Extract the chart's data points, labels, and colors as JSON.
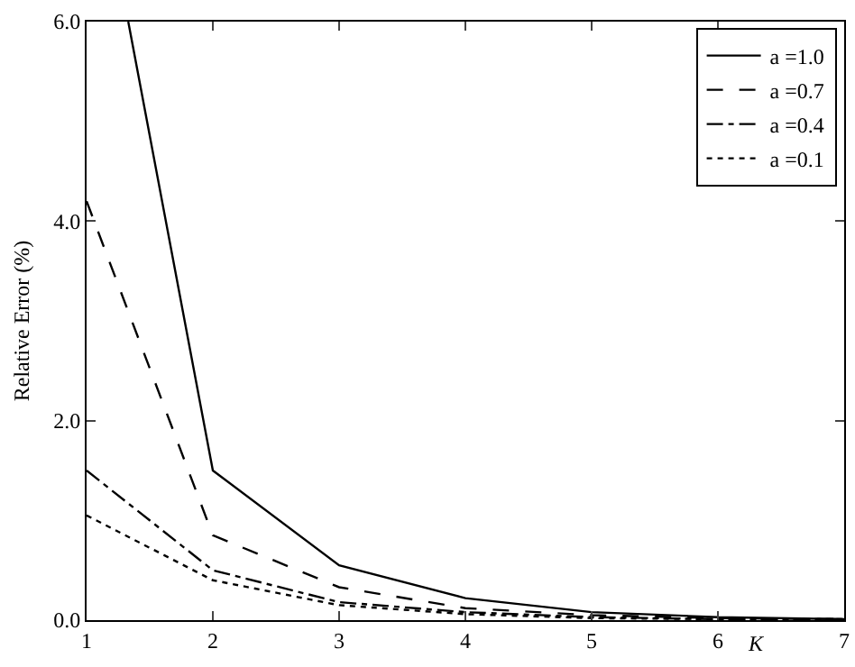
{
  "chart_data": {
    "type": "line",
    "xlabel": "K",
    "ylabel": "Relative Error (%)",
    "x": [
      1,
      2,
      3,
      4,
      5,
      6,
      7
    ],
    "series": [
      {
        "name": "a =1.0",
        "color": "#000000",
        "line_style": "solid",
        "x": [
          1.33,
          2,
          3,
          4,
          5,
          6,
          7
        ],
        "values": [
          6.0,
          1.5,
          0.55,
          0.22,
          0.08,
          0.03,
          0.01
        ]
      },
      {
        "name": "a =0.7",
        "color": "#000000",
        "line_style": "dashed",
        "values": [
          4.2,
          0.85,
          0.33,
          0.12,
          0.05,
          0.02,
          0.01
        ]
      },
      {
        "name": "a =0.4",
        "color": "#000000",
        "line_style": "dashdot",
        "values": [
          1.5,
          0.5,
          0.18,
          0.08,
          0.03,
          0.01,
          0.01
        ]
      },
      {
        "name": "a =0.1",
        "color": "#000000",
        "line_style": "dotted",
        "values": [
          1.05,
          0.4,
          0.15,
          0.06,
          0.02,
          0.01,
          0.01
        ]
      }
    ],
    "xlim": [
      1,
      7
    ],
    "xticks": [
      1,
      2,
      3,
      4,
      5,
      6,
      7
    ],
    "ylim": [
      0,
      6
    ],
    "yticks": [
      {
        "value": 0,
        "label": "0.0"
      },
      {
        "value": 2,
        "label": "2.0"
      },
      {
        "value": 4,
        "label": "4.0"
      },
      {
        "value": 6,
        "label": "6.0"
      }
    ],
    "grid": false,
    "legend": "top right",
    "marker": "none"
  }
}
